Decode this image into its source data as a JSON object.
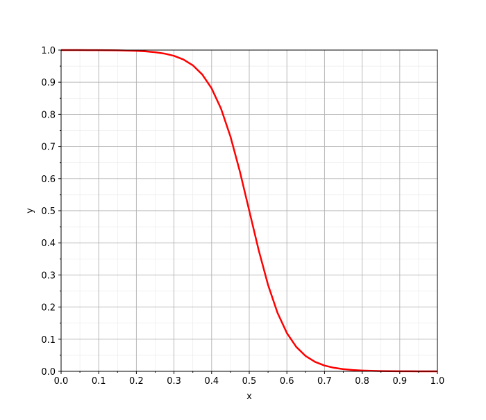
{
  "chart_data": {
    "type": "line",
    "title": "",
    "xlabel": "x",
    "ylabel": "y",
    "xlim": [
      0,
      1
    ],
    "ylim": [
      0,
      1
    ],
    "grid": {
      "major": true,
      "minor": true
    },
    "x_ticks": [
      "0.0",
      "0.1",
      "0.2",
      "0.3",
      "0.4",
      "0.5",
      "0.6",
      "0.7",
      "0.8",
      "0.9",
      "1.0"
    ],
    "y_ticks": [
      "0.0",
      "0.1",
      "0.2",
      "0.3",
      "0.4",
      "0.5",
      "0.6",
      "0.7",
      "0.8",
      "0.9",
      "1.0"
    ],
    "series": [
      {
        "color": "#ff0000",
        "x": [
          0,
          0.025,
          0.05,
          0.075,
          0.1,
          0.125,
          0.15,
          0.175,
          0.2,
          0.225,
          0.25,
          0.275,
          0.3,
          0.325,
          0.35,
          0.375,
          0.4,
          0.425,
          0.45,
          0.475,
          0.5,
          0.525,
          0.55,
          0.575,
          0.6,
          0.625,
          0.65,
          0.675,
          0.7,
          0.725,
          0.75,
          0.775,
          0.8,
          0.825,
          0.85,
          0.875,
          0.9,
          0.925,
          0.95,
          0.975,
          1.0
        ],
        "y": [
          0.99995,
          0.99993,
          0.99988,
          0.9998,
          0.99966,
          0.99945,
          0.99909,
          0.9985,
          0.99753,
          0.99593,
          0.99331,
          0.98901,
          0.98201,
          0.97069,
          0.95257,
          0.92414,
          0.8808,
          0.81757,
          0.73106,
          0.62246,
          0.5,
          0.37754,
          0.26894,
          0.18243,
          0.1192,
          0.07586,
          0.04743,
          0.02931,
          0.01799,
          0.01099,
          0.00669,
          0.00407,
          0.00247,
          0.0015,
          0.00091,
          0.00055,
          0.00034,
          0.0002,
          0.00012,
          7e-05,
          5e-05
        ]
      }
    ]
  }
}
